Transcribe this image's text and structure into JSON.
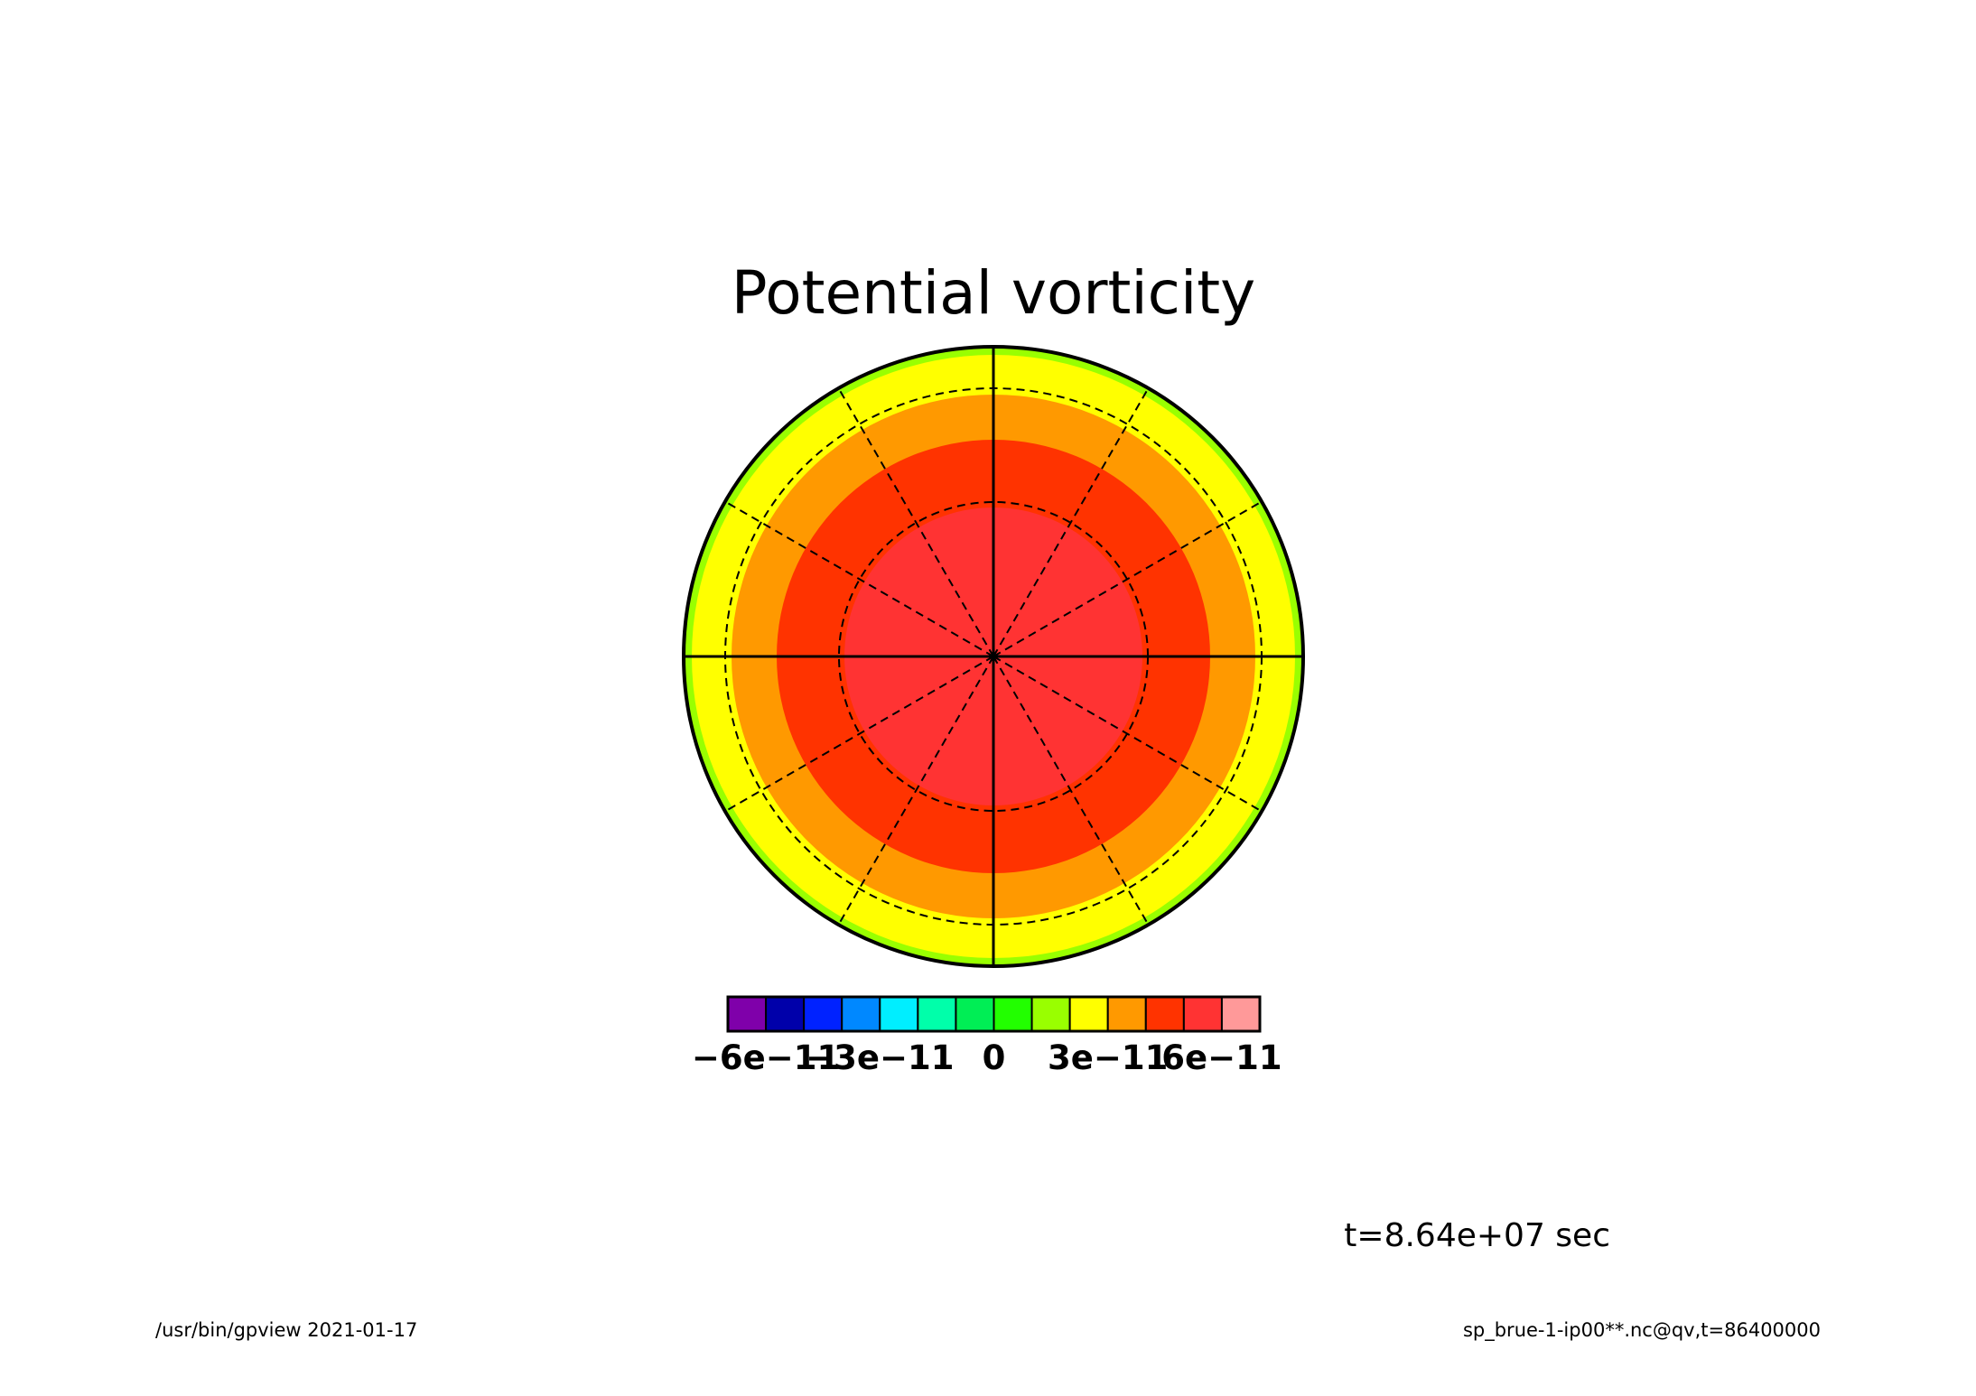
{
  "chart_data": {
    "type": "heatmap",
    "projection": "polar",
    "title": "Potential vorticity",
    "field_levels": [
      5e-11,
      4e-11,
      3e-11,
      2e-11,
      1e-11,
      0.0
    ],
    "fill_colors": [
      "#ff3333",
      "#ff3300",
      "#ff9900",
      "#ffff00",
      "#99ff00",
      "#ffffff"
    ],
    "grid_lines": "dashed",
    "colorbar": {
      "levels": [
        -7e-11,
        -6e-11,
        -5e-11,
        -4e-11,
        -3e-11,
        -2e-11,
        -1e-11,
        0,
        1e-11,
        2e-11,
        3e-11,
        4e-11,
        5e-11,
        6e-11,
        7e-11
      ],
      "colors": [
        "#7f00aa",
        "#0000aa",
        "#0022ff",
        "#0088ff",
        "#00eeff",
        "#00ffaa",
        "#00ee55",
        "#22ff00",
        "#99ff00",
        "#ffff00",
        "#ff9900",
        "#ff3300",
        "#ff3333",
        "#ff9999"
      ],
      "tick_labels": [
        {
          "label": "−6e−11",
          "value": -6e-11
        },
        {
          "label": "−3e−11",
          "value": -3e-11
        },
        {
          "label": "0",
          "value": 0
        },
        {
          "label": "3e−11",
          "value": 3e-11
        },
        {
          "label": "6e−11",
          "value": 6e-11
        }
      ]
    }
  },
  "annotations": {
    "time": "t=8.64e+07 sec",
    "footer_left": "/usr/bin/gpview  2021-01-17",
    "footer_right": "sp_brue-1-ip00**.nc@qv,t=86400000"
  }
}
